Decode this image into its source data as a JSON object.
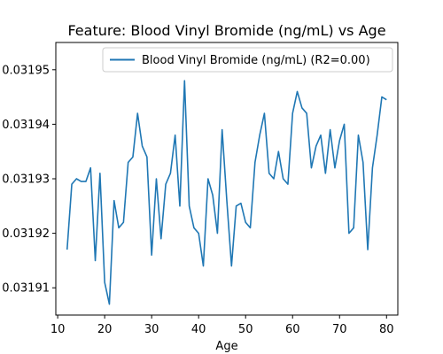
{
  "chart_data": {
    "type": "line",
    "title": "Feature: Blood Vinyl Bromide (ng/mL) vs Age",
    "xlabel": "Age",
    "ylabel": "",
    "xlim": [
      9.6,
      82.4
    ],
    "ylim": [
      0.031905,
      0.031955
    ],
    "xticks": [
      10,
      20,
      30,
      40,
      50,
      60,
      70,
      80
    ],
    "yticks": [
      0.03191,
      0.03192,
      0.03193,
      0.03194,
      0.03195
    ],
    "ytick_labels": [
      "0.03191",
      "0.03192",
      "0.03193",
      "0.03194",
      "0.03195"
    ],
    "grid": false,
    "legend_position": "upper right",
    "color": "#1f77b4",
    "series": [
      {
        "name": "Blood Vinyl Bromide (ng/mL) (R2=0.00)",
        "x": [
          12,
          13,
          14,
          15,
          16,
          17,
          18,
          19,
          20,
          21,
          22,
          23,
          24,
          25,
          26,
          27,
          28,
          29,
          30,
          31,
          32,
          33,
          34,
          35,
          36,
          37,
          38,
          39,
          40,
          41,
          42,
          43,
          44,
          45,
          46,
          47,
          48,
          49,
          50,
          51,
          52,
          53,
          54,
          55,
          56,
          57,
          58,
          59,
          60,
          61,
          62,
          63,
          64,
          65,
          66,
          67,
          68,
          69,
          70,
          71,
          72,
          73,
          74,
          75,
          76,
          77,
          78,
          79,
          80
        ],
        "values": [
          0.031917,
          0.031929,
          0.03193,
          0.0319295,
          0.0319295,
          0.031932,
          0.031915,
          0.031931,
          0.031911,
          0.031907,
          0.031926,
          0.031921,
          0.031922,
          0.031933,
          0.031934,
          0.031942,
          0.031936,
          0.031934,
          0.031916,
          0.03193,
          0.031919,
          0.031929,
          0.031931,
          0.031938,
          0.031925,
          0.031948,
          0.031925,
          0.031921,
          0.03192,
          0.031914,
          0.03193,
          0.031927,
          0.03192,
          0.031939,
          0.031926,
          0.031914,
          0.031925,
          0.0319255,
          0.031922,
          0.031921,
          0.031933,
          0.031938,
          0.031942,
          0.031931,
          0.03193,
          0.031935,
          0.03193,
          0.031929,
          0.031942,
          0.031946,
          0.031943,
          0.031942,
          0.031932,
          0.031936,
          0.031938,
          0.031931,
          0.031939,
          0.031932,
          0.031937,
          0.03194,
          0.03192,
          0.031921,
          0.031938,
          0.031933,
          0.031917,
          0.031932,
          0.031938,
          0.031945,
          0.0319445
        ]
      }
    ]
  }
}
